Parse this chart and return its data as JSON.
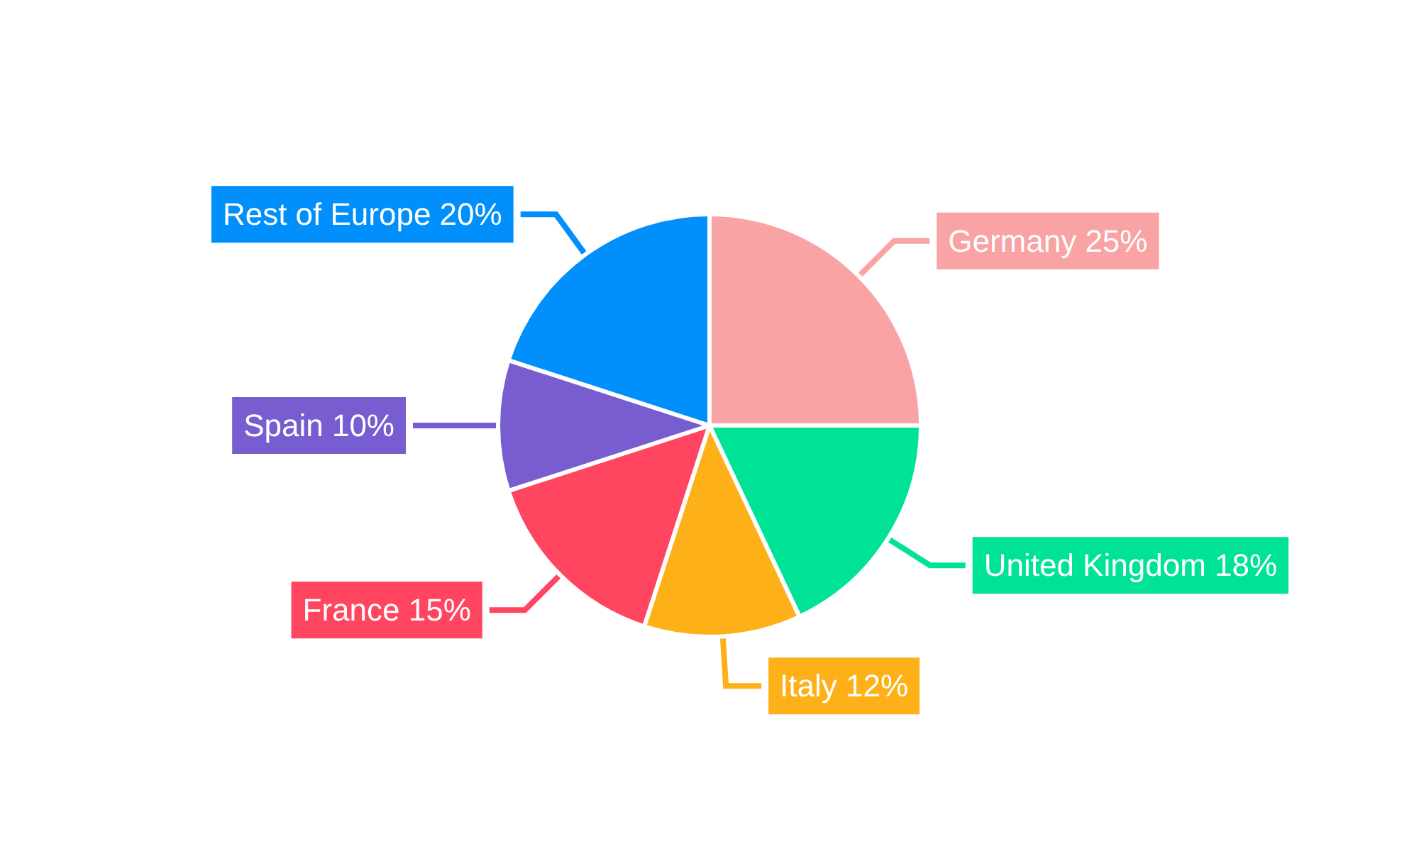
{
  "chart_data": {
    "type": "pie",
    "categories": [
      "Germany",
      "United Kingdom",
      "Italy",
      "France",
      "Spain",
      "Rest of Europe"
    ],
    "values": [
      25,
      18,
      12,
      15,
      10,
      20
    ],
    "value_labels": [
      "25%",
      "18%",
      "12%",
      "15%",
      "10%",
      "20%"
    ],
    "colors": [
      "#f9a3a4",
      "#00e396",
      "#feb019",
      "#ff4560",
      "#775dd0",
      "#008ffb"
    ],
    "legend": false
  }
}
